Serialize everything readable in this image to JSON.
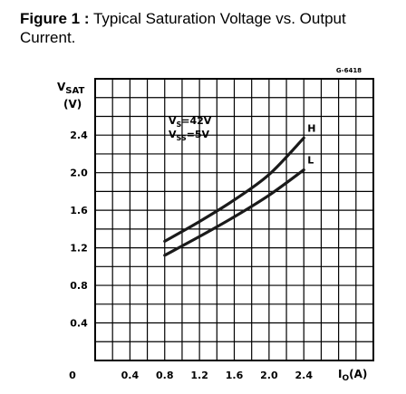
{
  "figure": {
    "label": "Figure 1 :",
    "caption": "Typical Saturation Voltage vs. Output Current."
  },
  "chart_data": {
    "type": "line",
    "figure_code": "G-6418",
    "ylabel_main": "V",
    "ylabel_sub": "SAT",
    "ylabel_unit": "(V)",
    "xlabel_main": "I",
    "xlabel_sub": "O",
    "xlabel_unit": "(A)",
    "origin_label": "0",
    "xlim": [
      0,
      3.2
    ],
    "ylim": [
      0,
      3.0
    ],
    "x_ticks": [
      0.4,
      0.8,
      1.2,
      1.6,
      2.0,
      2.4
    ],
    "x_tick_labels": [
      "0.4",
      "0.8",
      "1.2",
      "1.6",
      "2.0",
      "2.4"
    ],
    "y_ticks": [
      0.4,
      0.8,
      1.2,
      1.6,
      2.0,
      2.4
    ],
    "y_tick_labels": [
      "0.4",
      "0.8",
      "1.2",
      "1.6",
      "2.0",
      "2.4"
    ],
    "grid": true,
    "conditions": [
      {
        "main": "V",
        "sub": "S",
        "value": "=42V"
      },
      {
        "main": "V",
        "sub": "SS",
        "value": "=5V"
      }
    ],
    "series": [
      {
        "name": "H",
        "x": [
          0.8,
          1.2,
          1.6,
          2.0,
          2.4
        ],
        "y": [
          1.27,
          1.48,
          1.71,
          1.98,
          2.37
        ]
      },
      {
        "name": "L",
        "x": [
          0.8,
          1.2,
          1.6,
          2.0,
          2.4
        ],
        "y": [
          1.12,
          1.32,
          1.53,
          1.76,
          2.03
        ]
      }
    ],
    "colors": {
      "line": "#1a1a1a",
      "grid": "#000000"
    }
  }
}
